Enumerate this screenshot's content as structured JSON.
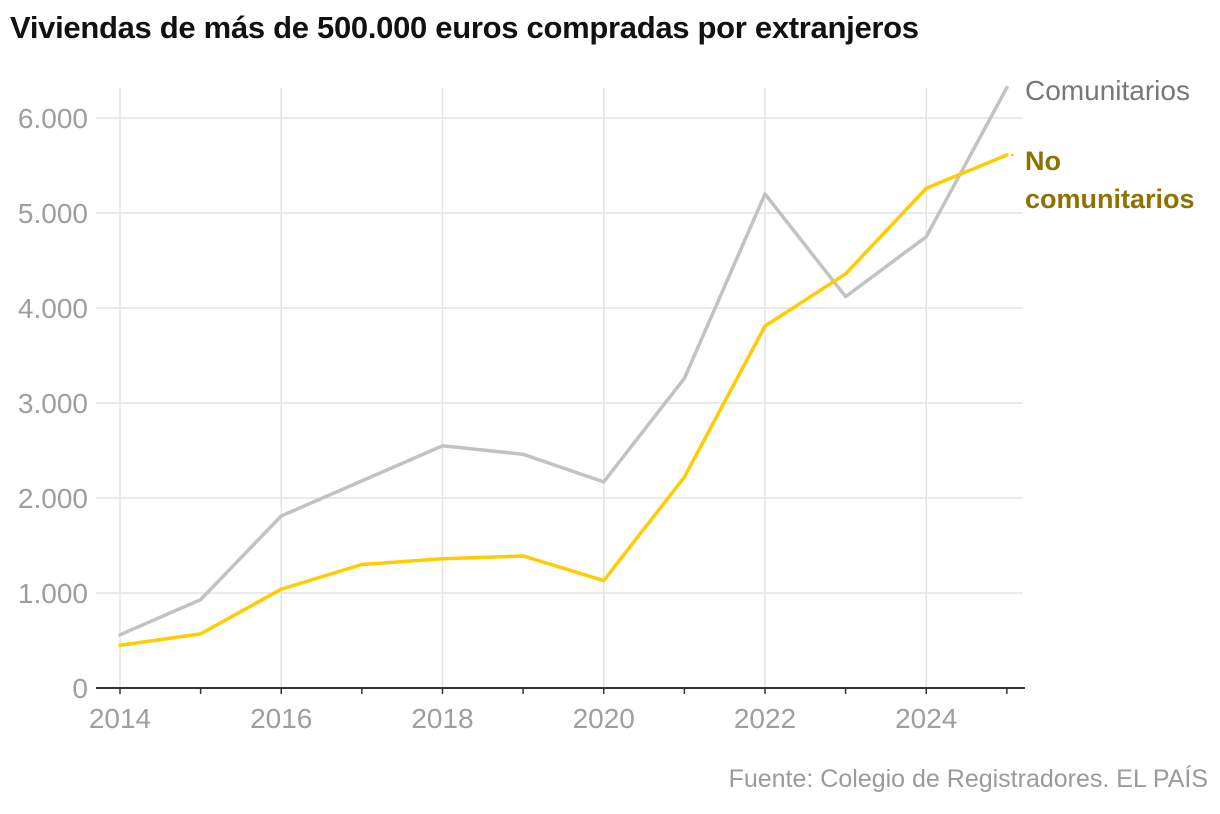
{
  "chart_data": {
    "type": "line",
    "title": "Viviendas de más de 500.000 euros compradas por extranjeros",
    "x": [
      2014,
      2015,
      2016,
      2017,
      2018,
      2019,
      2020,
      2021,
      2022,
      2023,
      2024,
      2025
    ],
    "x_tick_labels": [
      "2014",
      "2016",
      "2018",
      "2020",
      "2022",
      "2024"
    ],
    "y_tick_labels": [
      "0",
      "1.000",
      "2.000",
      "3.000",
      "4.000",
      "5.000",
      "6.000"
    ],
    "xlim": [
      2014,
      2025.2
    ],
    "ylim": [
      0,
      6300
    ],
    "grid": true,
    "legend": "direct labels at line ends (right)",
    "series": [
      {
        "name": "Comunitarios",
        "color": "#c0c2c5",
        "label_color": "#777777",
        "values": [
          560,
          930,
          1810,
          2180,
          2550,
          2460,
          2170,
          3260,
          5200,
          4120,
          4750,
          6320
        ]
      },
      {
        "name": "No comunitarios",
        "color": "#ffcc00",
        "label_color": "#8f7100",
        "values": [
          450,
          570,
          1040,
          1300,
          1360,
          1390,
          1130,
          2220,
          3810,
          4360,
          5260,
          5610
        ]
      }
    ]
  },
  "source": "Fuente: Colegio de Registradores. EL PAÍS"
}
